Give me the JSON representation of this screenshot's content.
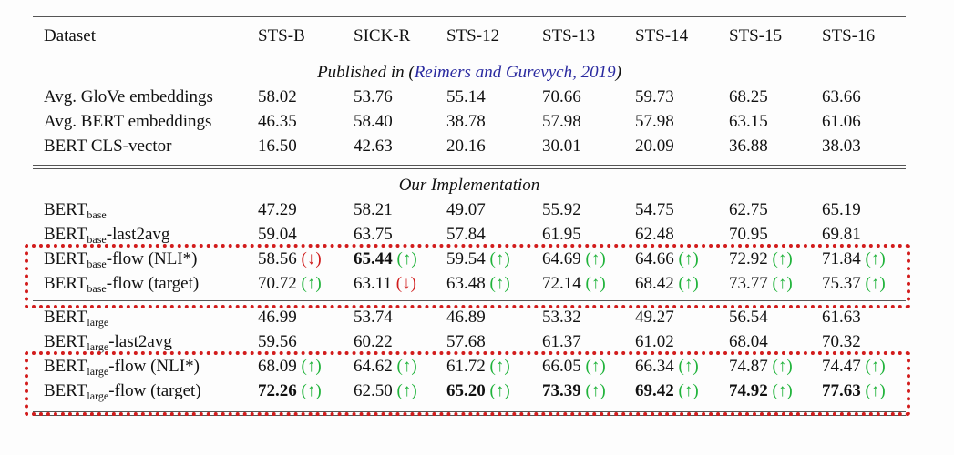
{
  "header": [
    "Dataset",
    "STS-B",
    "SICK-R",
    "STS-12",
    "STS-13",
    "STS-14",
    "STS-15",
    "STS-16"
  ],
  "sections": [
    {
      "title": {
        "before": "Published in (",
        "cite": "Reimers and Gurevych, 2019",
        "after": ")"
      },
      "rows": [
        {
          "label": {
            "main": "Avg. GloVe embeddings"
          },
          "cells": [
            {
              "text": "58.02"
            },
            {
              "text": "53.76"
            },
            {
              "text": "55.14"
            },
            {
              "text": "70.66"
            },
            {
              "text": "59.73"
            },
            {
              "text": "68.25"
            },
            {
              "text": "63.66"
            }
          ]
        },
        {
          "label": {
            "main": "Avg. BERT embeddings"
          },
          "cells": [
            {
              "text": "46.35"
            },
            {
              "text": "58.40"
            },
            {
              "text": "38.78"
            },
            {
              "text": "57.98"
            },
            {
              "text": "57.98"
            },
            {
              "text": "63.15"
            },
            {
              "text": "61.06"
            }
          ]
        },
        {
          "label": {
            "main": "BERT CLS-vector"
          },
          "cells": [
            {
              "text": "16.50"
            },
            {
              "text": "42.63"
            },
            {
              "text": "20.16"
            },
            {
              "text": "30.01"
            },
            {
              "text": "20.09"
            },
            {
              "text": "36.88"
            },
            {
              "text": "38.03"
            }
          ]
        }
      ]
    },
    {
      "title": {
        "before": "Our Implementation"
      },
      "rows": [
        {
          "label": {
            "main": "BERT",
            "sub": "base"
          },
          "cells": [
            {
              "text": "47.29"
            },
            {
              "text": "58.21"
            },
            {
              "text": "49.07"
            },
            {
              "text": "55.92"
            },
            {
              "text": "54.75"
            },
            {
              "text": "62.75"
            },
            {
              "text": "65.19"
            }
          ]
        },
        {
          "label": {
            "main": "BERT",
            "sub": "base",
            "rest": "-last2avg"
          },
          "cells": [
            {
              "text": "59.04"
            },
            {
              "text": "63.75"
            },
            {
              "text": "57.84"
            },
            {
              "text": "61.95"
            },
            {
              "text": "62.48"
            },
            {
              "text": "70.95"
            },
            {
              "text": "69.81"
            }
          ]
        },
        {
          "label": {
            "main": "BERT",
            "sub": "base",
            "rest": "-flow (NLI*)"
          },
          "boxed": "start",
          "cells": [
            {
              "text": "58.56",
              "arrow": "(↓)",
              "dir": "down"
            },
            {
              "text": "65.44",
              "bold": true,
              "arrow": "(↑)",
              "dir": "up"
            },
            {
              "text": "59.54",
              "arrow": "(↑)",
              "dir": "up"
            },
            {
              "text": "64.69",
              "arrow": "(↑)",
              "dir": "up"
            },
            {
              "text": "64.66",
              "arrow": "(↑)",
              "dir": "up"
            },
            {
              "text": "72.92",
              "arrow": "(↑)",
              "dir": "up"
            },
            {
              "text": "71.84",
              "arrow": "(↑)",
              "dir": "up"
            }
          ]
        },
        {
          "label": {
            "main": "BERT",
            "sub": "base",
            "rest": "-flow (target)"
          },
          "boxed": "end",
          "cells": [
            {
              "text": "70.72",
              "arrow": "(↑)",
              "dir": "up"
            },
            {
              "text": "63.11",
              "arrow": "(↓)",
              "dir": "down"
            },
            {
              "text": "63.48",
              "arrow": "(↑)",
              "dir": "up"
            },
            {
              "text": "72.14",
              "arrow": "(↑)",
              "dir": "up"
            },
            {
              "text": "68.42",
              "arrow": "(↑)",
              "dir": "up"
            },
            {
              "text": "73.77",
              "arrow": "(↑)",
              "dir": "up"
            },
            {
              "text": "75.37",
              "arrow": "(↑)",
              "dir": "up"
            }
          ]
        },
        {
          "label": {
            "main": "BERT",
            "sub": "large"
          },
          "cells": [
            {
              "text": "46.99"
            },
            {
              "text": "53.74"
            },
            {
              "text": "46.89"
            },
            {
              "text": "53.32"
            },
            {
              "text": "49.27"
            },
            {
              "text": "56.54"
            },
            {
              "text": "61.63"
            }
          ]
        },
        {
          "label": {
            "main": "BERT",
            "sub": "large",
            "rest": "-last2avg"
          },
          "cells": [
            {
              "text": "59.56"
            },
            {
              "text": "60.22"
            },
            {
              "text": "57.68"
            },
            {
              "text": "61.37"
            },
            {
              "text": "61.02"
            },
            {
              "text": "68.04"
            },
            {
              "text": "70.32"
            }
          ]
        },
        {
          "label": {
            "main": "BERT",
            "sub": "large",
            "rest": "-flow (NLI*)"
          },
          "boxed": "start",
          "cells": [
            {
              "text": "68.09",
              "arrow": "(↑)",
              "dir": "up"
            },
            {
              "text": "64.62",
              "arrow": "(↑)",
              "dir": "up"
            },
            {
              "text": "61.72",
              "arrow": "(↑)",
              "dir": "up"
            },
            {
              "text": "66.05",
              "arrow": "(↑)",
              "dir": "up"
            },
            {
              "text": "66.34",
              "arrow": "(↑)",
              "dir": "up"
            },
            {
              "text": "74.87",
              "arrow": "(↑)",
              "dir": "up"
            },
            {
              "text": "74.47",
              "arrow": "(↑)",
              "dir": "up"
            }
          ]
        },
        {
          "label": {
            "main": "BERT",
            "sub": "large",
            "rest": "-flow (target)"
          },
          "boxed": "end",
          "cells": [
            {
              "text": "72.26",
              "bold": true,
              "arrow": "(↑)",
              "dir": "up"
            },
            {
              "text": "62.50",
              "arrow": "(↑)",
              "dir": "up"
            },
            {
              "text": "65.20",
              "bold": true,
              "arrow": "(↑)",
              "dir": "up"
            },
            {
              "text": "73.39",
              "bold": true,
              "arrow": "(↑)",
              "dir": "up"
            },
            {
              "text": "69.42",
              "bold": true,
              "arrow": "(↑)",
              "dir": "up"
            },
            {
              "text": "74.92",
              "bold": true,
              "arrow": "(↑)",
              "dir": "up"
            },
            {
              "text": "77.63",
              "bold": true,
              "arrow": "(↑)",
              "dir": "up"
            }
          ]
        }
      ]
    }
  ]
}
